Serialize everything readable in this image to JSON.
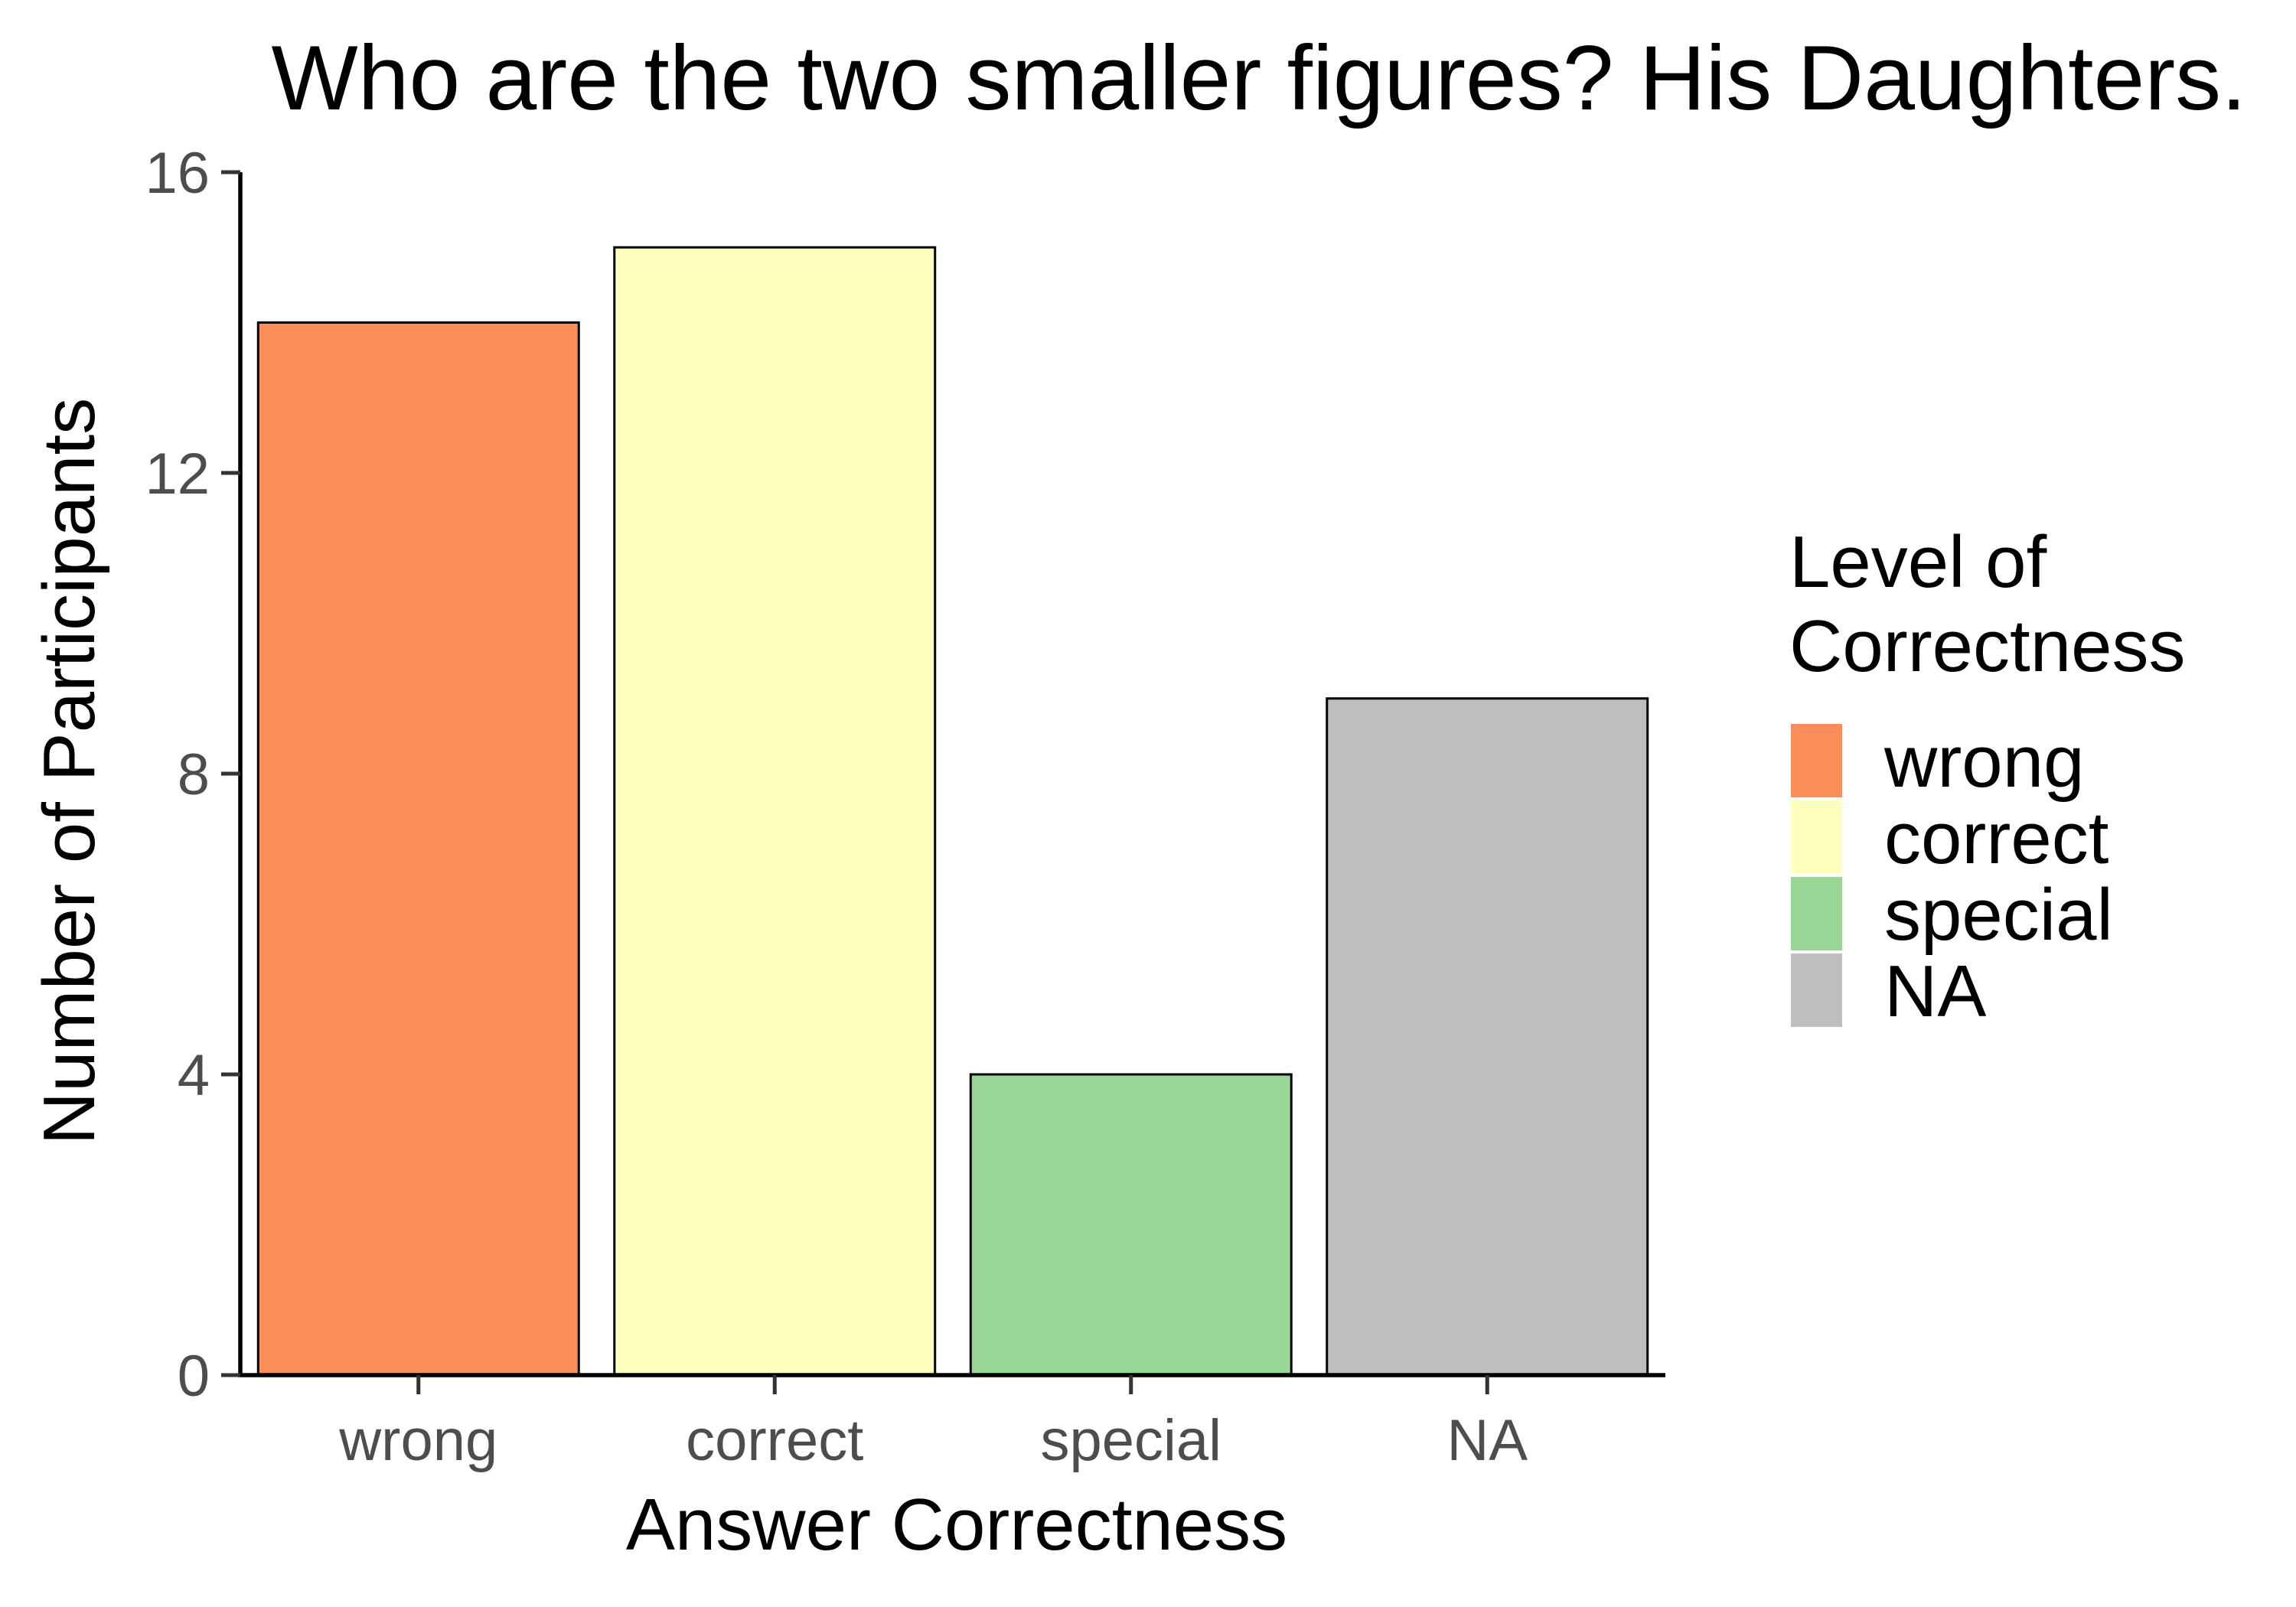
{
  "chart_data": {
    "type": "bar",
    "title": "Who are the two smaller figures? His Daughters.",
    "xlabel": "Answer Correctness",
    "ylabel": "Number of Participants",
    "categories": [
      "wrong",
      "correct",
      "special",
      "NA"
    ],
    "values": [
      14,
      15,
      4,
      9
    ],
    "colors": [
      "#fc8d59",
      "#ffffbf",
      "#99d594",
      "#bebebe"
    ],
    "ylim": [
      0,
      16
    ],
    "yticks": [
      0,
      4,
      8,
      12,
      16
    ],
    "ytick_labels": [
      "0",
      "4",
      "8",
      "12",
      "16"
    ],
    "grid": false,
    "legend": {
      "title_lines": [
        "Level of",
        "Correctness"
      ],
      "entries": [
        "wrong",
        "correct",
        "special",
        "NA"
      ],
      "placement": "right"
    }
  }
}
